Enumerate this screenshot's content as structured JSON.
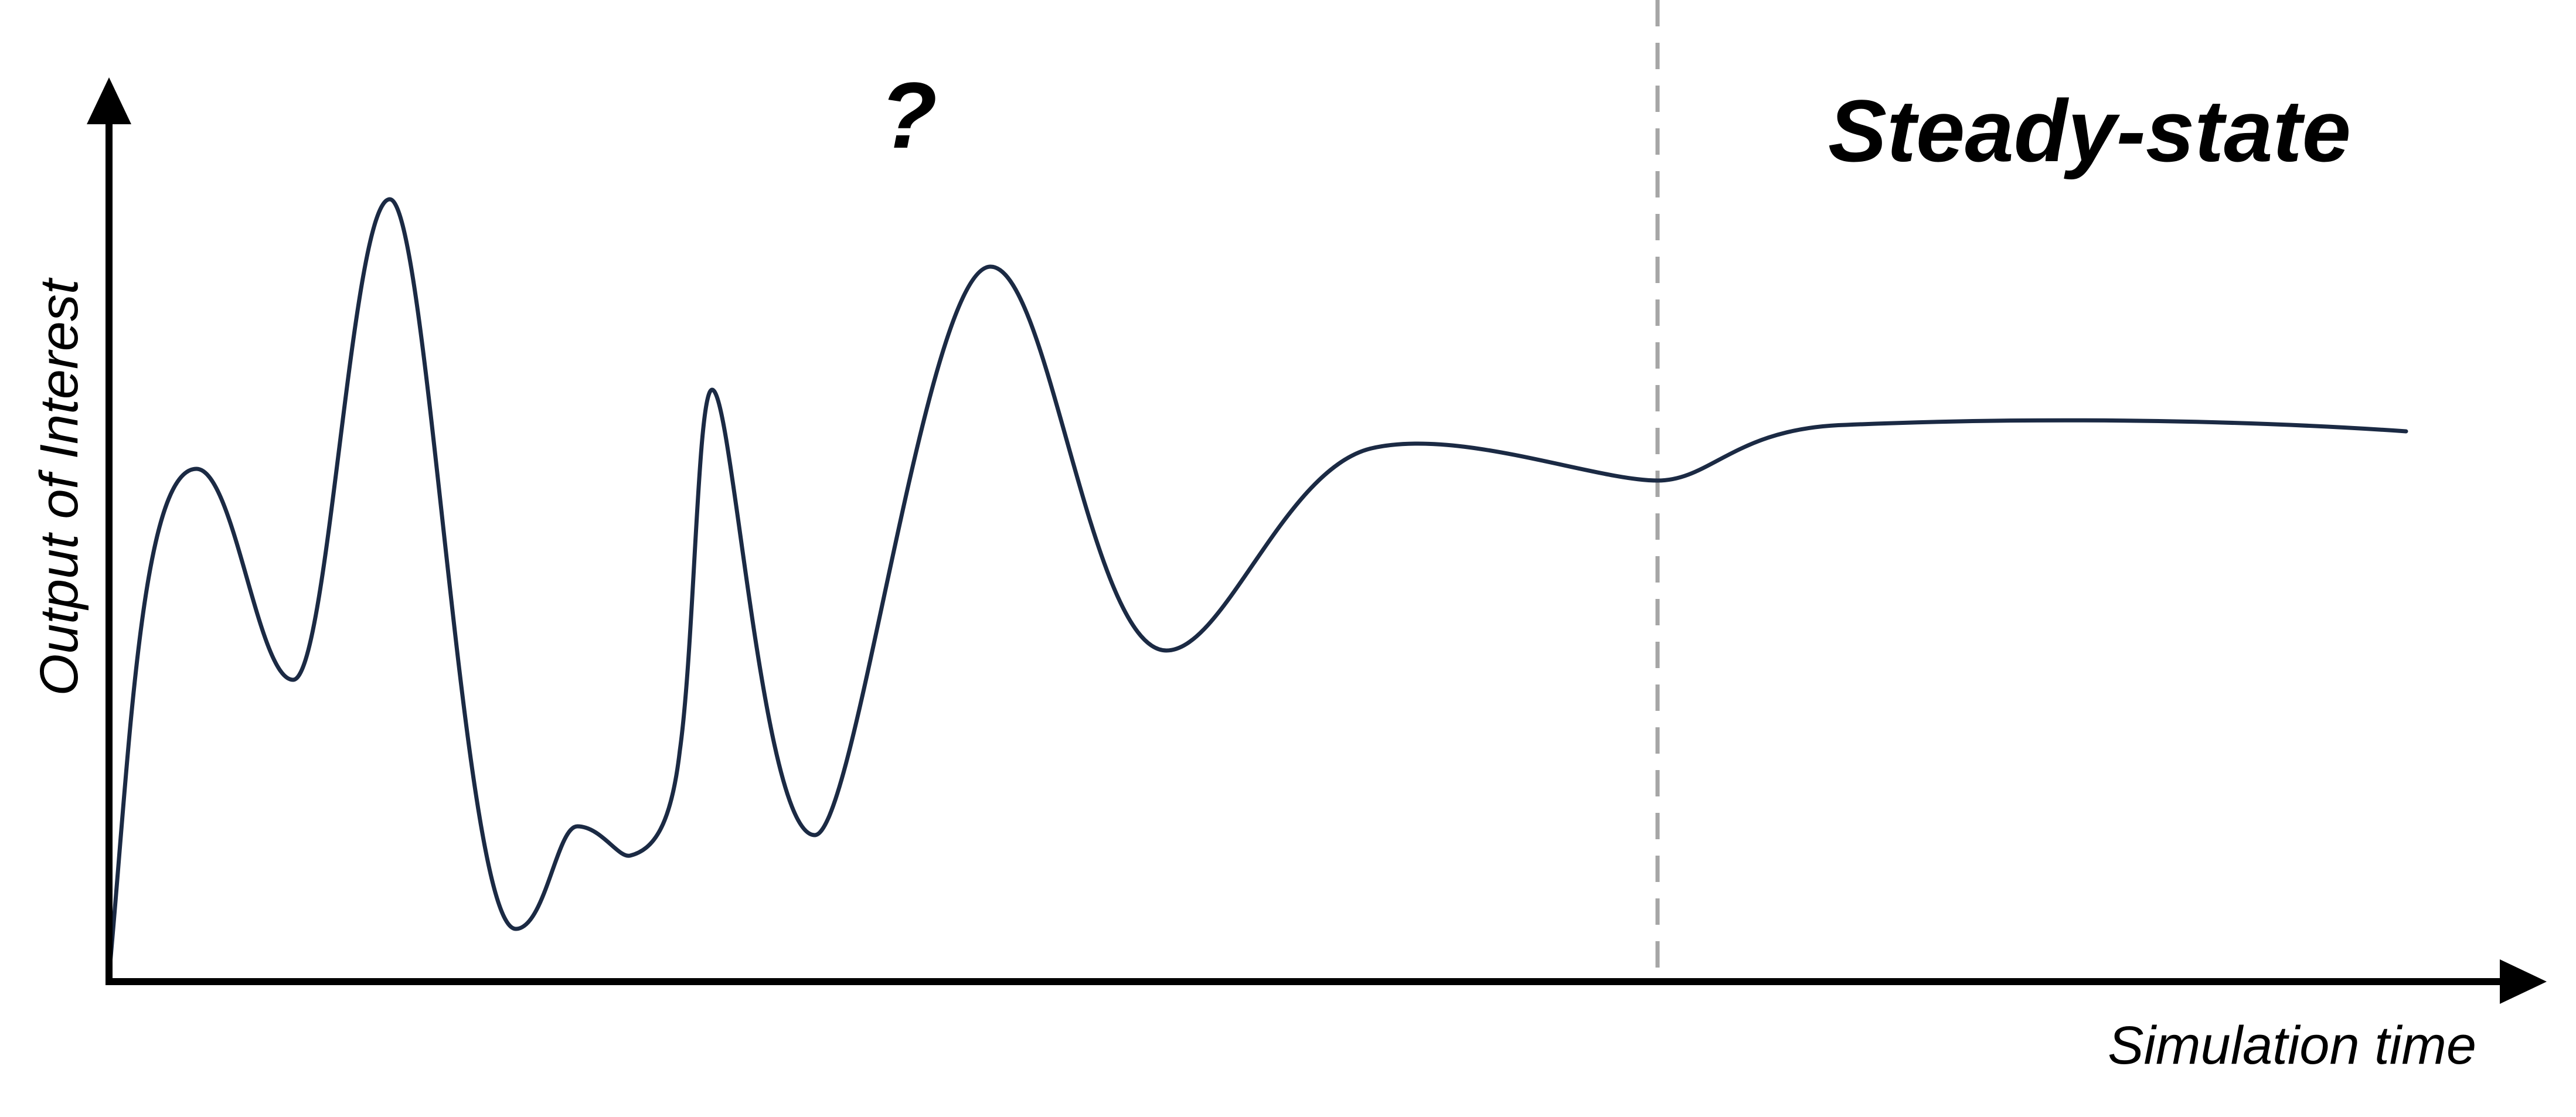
{
  "diagram": {
    "y_axis_label": "Output of Interest",
    "x_axis_label": "Simulation time",
    "transient_region_label": "?",
    "steady_state_label": "Steady-state",
    "colors": {
      "curve": "#1b2a44",
      "axes": "#000000",
      "divider": "#a6a6a6",
      "background": "#ffffff"
    }
  }
}
